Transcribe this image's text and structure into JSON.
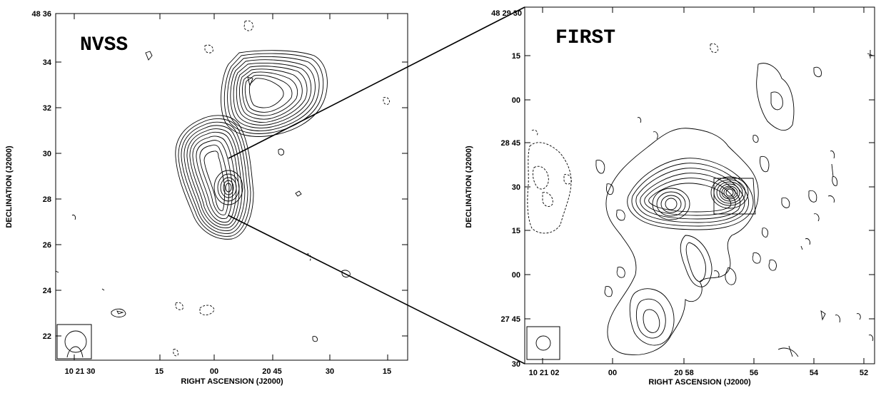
{
  "left_panel": {
    "survey": "NVSS",
    "ylabel": "DECLINATION (J2000)",
    "xlabel": "RIGHT ASCENSION (J2000)",
    "yticks": [
      "48 36",
      "34",
      "32",
      "30",
      "28",
      "26",
      "24",
      "22"
    ],
    "xticks": [
      "10 21 30",
      "15",
      "00",
      "20 45",
      "30",
      "15"
    ]
  },
  "right_panel": {
    "survey": "FIRST",
    "ylabel": "DECLINATION (J2000)",
    "xlabel": "RIGHT ASCENSION (J2000)",
    "yticks": [
      "48 29 30",
      "15",
      "00",
      "28 45",
      "30",
      "15",
      "00",
      "27 45",
      "30"
    ],
    "xticks": [
      "10 21 02",
      "00",
      "20 58",
      "56",
      "54",
      "52"
    ]
  }
}
